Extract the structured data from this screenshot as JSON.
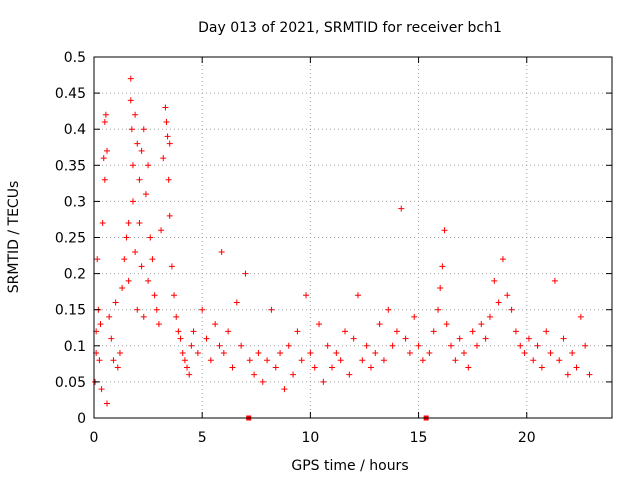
{
  "chart_data": {
    "type": "scatter",
    "title": "Day 013 of 2021, SRMTID for receiver bch1",
    "xlabel": "GPS time / hours",
    "ylabel": "SRMTID / TECUs",
    "xlim": [
      0,
      23.94
    ],
    "ylim": [
      0,
      0.5
    ],
    "x_ticks": [
      0,
      5,
      10,
      15,
      20
    ],
    "x_tick_labels": [
      "0",
      "5",
      "10",
      "15",
      "20"
    ],
    "y_ticks": [
      0,
      0.05,
      0.1,
      0.15,
      0.2,
      0.25,
      0.3,
      0.35,
      0.4,
      0.45,
      0.5
    ],
    "y_tick_labels": [
      "0",
      "0.05",
      "0.1",
      "0.15",
      "0.2",
      "0.25",
      "0.3",
      "0.35",
      "0.4",
      "0.45",
      "0.5"
    ],
    "grid": true,
    "marker": "+",
    "color": "#ff0000",
    "data_gaps_x": [
      7.15,
      15.35
    ],
    "series": [
      {
        "name": "bch1",
        "points": [
          [
            0.05,
            0.05
          ],
          [
            0.1,
            0.12
          ],
          [
            0.1,
            0.09
          ],
          [
            0.15,
            0.22
          ],
          [
            0.2,
            0.15
          ],
          [
            0.25,
            0.08
          ],
          [
            0.3,
            0.13
          ],
          [
            0.35,
            0.04
          ],
          [
            0.4,
            0.27
          ],
          [
            0.45,
            0.36
          ],
          [
            0.5,
            0.41
          ],
          [
            0.5,
            0.33
          ],
          [
            0.55,
            0.42
          ],
          [
            0.6,
            0.02
          ],
          [
            0.6,
            0.37
          ],
          [
            0.7,
            0.14
          ],
          [
            0.8,
            0.11
          ],
          [
            0.9,
            0.08
          ],
          [
            1.0,
            0.16
          ],
          [
            1.1,
            0.07
          ],
          [
            1.2,
            0.09
          ],
          [
            1.3,
            0.18
          ],
          [
            1.4,
            0.22
          ],
          [
            1.5,
            0.25
          ],
          [
            1.6,
            0.27
          ],
          [
            1.6,
            0.19
          ],
          [
            1.7,
            0.47
          ],
          [
            1.7,
            0.44
          ],
          [
            1.75,
            0.4
          ],
          [
            1.8,
            0.35
          ],
          [
            1.8,
            0.3
          ],
          [
            1.9,
            0.42
          ],
          [
            1.9,
            0.23
          ],
          [
            2.0,
            0.38
          ],
          [
            2.0,
            0.15
          ],
          [
            2.1,
            0.33
          ],
          [
            2.1,
            0.27
          ],
          [
            2.2,
            0.37
          ],
          [
            2.2,
            0.21
          ],
          [
            2.3,
            0.4
          ],
          [
            2.3,
            0.14
          ],
          [
            2.4,
            0.31
          ],
          [
            2.5,
            0.35
          ],
          [
            2.5,
            0.19
          ],
          [
            2.6,
            0.25
          ],
          [
            2.7,
            0.22
          ],
          [
            2.8,
            0.17
          ],
          [
            2.9,
            0.15
          ],
          [
            3.0,
            0.13
          ],
          [
            3.1,
            0.26
          ],
          [
            3.2,
            0.36
          ],
          [
            3.3,
            0.43
          ],
          [
            3.35,
            0.41
          ],
          [
            3.4,
            0.39
          ],
          [
            3.45,
            0.33
          ],
          [
            3.5,
            0.28
          ],
          [
            3.5,
            0.38
          ],
          [
            3.6,
            0.21
          ],
          [
            3.7,
            0.17
          ],
          [
            3.8,
            0.14
          ],
          [
            3.9,
            0.12
          ],
          [
            4.0,
            0.11
          ],
          [
            4.1,
            0.09
          ],
          [
            4.2,
            0.08
          ],
          [
            4.3,
            0.07
          ],
          [
            4.4,
            0.06
          ],
          [
            4.5,
            0.1
          ],
          [
            4.6,
            0.12
          ],
          [
            4.8,
            0.09
          ],
          [
            5.0,
            0.15
          ],
          [
            5.2,
            0.11
          ],
          [
            5.4,
            0.08
          ],
          [
            5.6,
            0.13
          ],
          [
            5.8,
            0.1
          ],
          [
            5.9,
            0.23
          ],
          [
            6.0,
            0.09
          ],
          [
            6.2,
            0.12
          ],
          [
            6.4,
            0.07
          ],
          [
            6.6,
            0.16
          ],
          [
            6.8,
            0.1
          ],
          [
            7.0,
            0.2
          ],
          [
            7.2,
            0.08
          ],
          [
            7.4,
            0.06
          ],
          [
            7.6,
            0.09
          ],
          [
            7.8,
            0.05
          ],
          [
            8.0,
            0.08
          ],
          [
            8.2,
            0.15
          ],
          [
            8.4,
            0.07
          ],
          [
            8.6,
            0.09
          ],
          [
            8.8,
            0.04
          ],
          [
            9.0,
            0.1
          ],
          [
            9.2,
            0.06
          ],
          [
            9.4,
            0.12
          ],
          [
            9.6,
            0.08
          ],
          [
            9.8,
            0.17
          ],
          [
            10.0,
            0.09
          ],
          [
            10.2,
            0.07
          ],
          [
            10.4,
            0.13
          ],
          [
            10.6,
            0.05
          ],
          [
            10.8,
            0.1
          ],
          [
            11.0,
            0.07
          ],
          [
            11.2,
            0.09
          ],
          [
            11.4,
            0.08
          ],
          [
            11.6,
            0.12
          ],
          [
            11.8,
            0.06
          ],
          [
            12.0,
            0.11
          ],
          [
            12.2,
            0.17
          ],
          [
            12.4,
            0.08
          ],
          [
            12.6,
            0.1
          ],
          [
            12.8,
            0.07
          ],
          [
            13.0,
            0.09
          ],
          [
            13.2,
            0.13
          ],
          [
            13.4,
            0.08
          ],
          [
            13.6,
            0.15
          ],
          [
            13.8,
            0.1
          ],
          [
            14.0,
            0.12
          ],
          [
            14.2,
            0.29
          ],
          [
            14.4,
            0.11
          ],
          [
            14.6,
            0.09
          ],
          [
            14.8,
            0.14
          ],
          [
            15.0,
            0.1
          ],
          [
            15.2,
            0.08
          ],
          [
            15.5,
            0.09
          ],
          [
            15.7,
            0.12
          ],
          [
            15.9,
            0.15
          ],
          [
            16.0,
            0.18
          ],
          [
            16.1,
            0.21
          ],
          [
            16.2,
            0.26
          ],
          [
            16.3,
            0.13
          ],
          [
            16.5,
            0.1
          ],
          [
            16.7,
            0.08
          ],
          [
            16.9,
            0.11
          ],
          [
            17.1,
            0.09
          ],
          [
            17.3,
            0.07
          ],
          [
            17.5,
            0.12
          ],
          [
            17.7,
            0.1
          ],
          [
            17.9,
            0.13
          ],
          [
            18.1,
            0.11
          ],
          [
            18.3,
            0.14
          ],
          [
            18.5,
            0.19
          ],
          [
            18.7,
            0.16
          ],
          [
            18.9,
            0.22
          ],
          [
            19.1,
            0.17
          ],
          [
            19.3,
            0.15
          ],
          [
            19.5,
            0.12
          ],
          [
            19.7,
            0.1
          ],
          [
            19.9,
            0.09
          ],
          [
            20.1,
            0.11
          ],
          [
            20.3,
            0.08
          ],
          [
            20.5,
            0.1
          ],
          [
            20.7,
            0.07
          ],
          [
            20.9,
            0.12
          ],
          [
            21.1,
            0.09
          ],
          [
            21.3,
            0.19
          ],
          [
            21.5,
            0.08
          ],
          [
            21.7,
            0.11
          ],
          [
            21.9,
            0.06
          ],
          [
            22.1,
            0.09
          ],
          [
            22.3,
            0.07
          ],
          [
            22.5,
            0.14
          ],
          [
            22.7,
            0.1
          ],
          [
            22.9,
            0.06
          ]
        ]
      }
    ]
  }
}
